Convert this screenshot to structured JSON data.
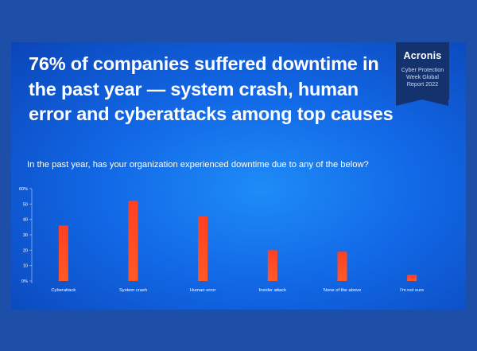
{
  "headline": "76% of companies suffered downtime in the past year — system crash, human error and cyberattacks among top causes",
  "subtitle": "In the past year, has your organization experienced downtime due to any of the below?",
  "badge": {
    "logo": "Acronis",
    "lines": [
      "Cyber Protection",
      "Week Global",
      "Report 2022"
    ]
  },
  "colors": {
    "bar": "#ff5a26",
    "bar_gradient_top": "#ff4022",
    "background": "#1d4fa8",
    "axis": "#c8d8f5"
  },
  "chart_data": {
    "type": "bar",
    "title": "In the past year, has your organization experienced downtime due to any of the below?",
    "categories": [
      "Cyberattack",
      "System crash",
      "Human error",
      "Insider attack",
      "None of the above",
      "I'm not sure"
    ],
    "values": [
      36,
      52,
      42,
      20,
      19,
      4
    ],
    "ylim": [
      0,
      60
    ],
    "yticks": [
      0,
      10,
      20,
      30,
      40,
      50,
      60
    ],
    "ytick_labels": [
      "0%",
      "10",
      "20",
      "30",
      "40",
      "50",
      "60%"
    ],
    "xlabel": "",
    "ylabel": "",
    "grid": false,
    "legend": "none"
  }
}
